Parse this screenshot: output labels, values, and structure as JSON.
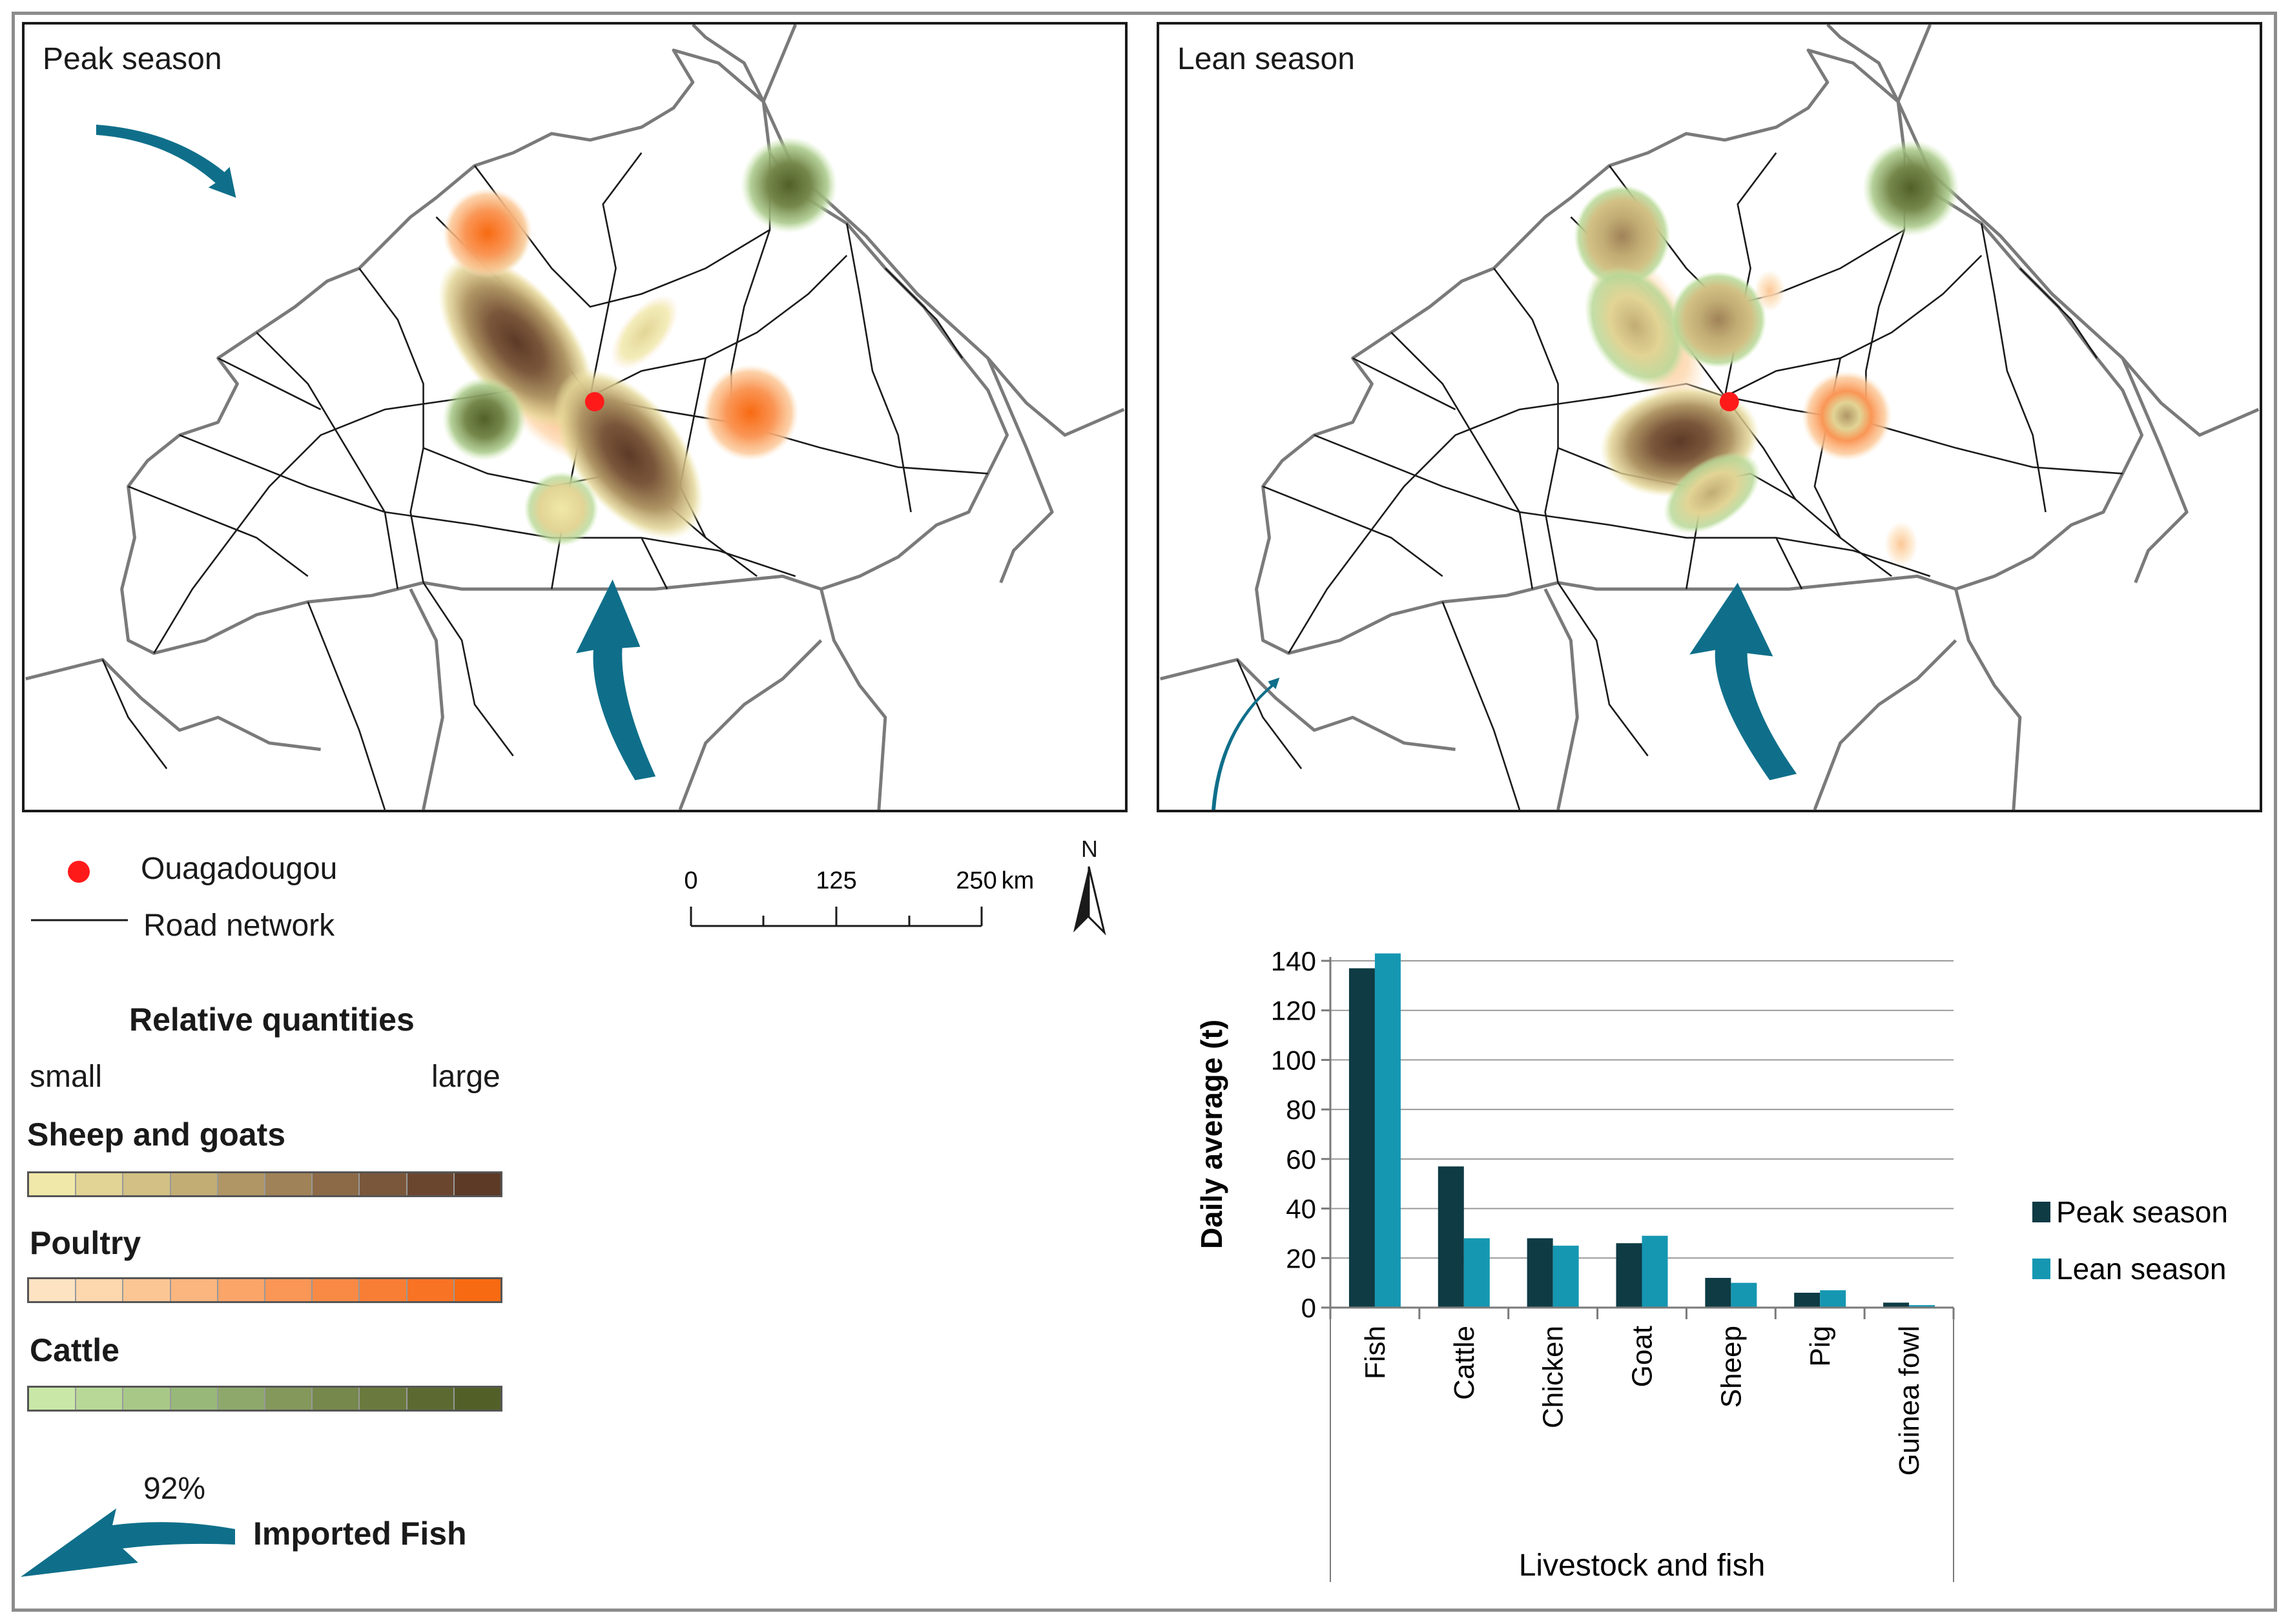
{
  "maps": {
    "peak_title": "Peak season",
    "lean_title": "Lean season"
  },
  "legend": {
    "capital_label": "Ouagadougou",
    "road_label": "Road network",
    "quantities_title": "Relative quantities",
    "small_label": "small",
    "large_label": "large",
    "sheep_goats_label": "Sheep and goats",
    "poultry_label": "Poultry",
    "cattle_label": "Cattle",
    "import_percent": "92%",
    "import_label": "Imported Fish",
    "colors": {
      "capital": "#ff1a1a",
      "arrow": "#0f6f8a",
      "sheep_goats": [
        "#f0e8a8",
        "#e2d495",
        "#d2c084",
        "#c2ad74",
        "#b09665",
        "#a08258",
        "#8c6a47",
        "#7a573b",
        "#6a462f",
        "#5c3a26"
      ],
      "poultry": [
        "#fde3c2",
        "#fdd7ad",
        "#fcc694",
        "#fbb57e",
        "#fba569",
        "#fa9656",
        "#f98a45",
        "#f97e35",
        "#f97324",
        "#f86a12"
      ],
      "cattle": [
        "#c9e8a8",
        "#b8d898",
        "#a8c888",
        "#98b87a",
        "#8ea86c",
        "#84985c",
        "#76884c",
        "#6a7a3e",
        "#5c6a32",
        "#526028"
      ]
    }
  },
  "scalebar": {
    "tick_0": "0",
    "tick_125": "125",
    "tick_250": "250",
    "unit": "km",
    "north": "N"
  },
  "chart_data": {
    "type": "bar",
    "categories": [
      "Fish",
      "Cattle",
      "Chicken",
      "Goat",
      "Sheep",
      "Pig",
      "Guinea fowl"
    ],
    "series": [
      {
        "name": "Peak season",
        "color": "#0e3b44",
        "values": [
          137,
          57,
          28,
          26,
          12,
          6,
          2
        ]
      },
      {
        "name": "Lean season",
        "color": "#1597b2",
        "values": [
          143,
          28,
          25,
          29,
          10,
          7,
          1
        ]
      }
    ],
    "title": "",
    "xlabel": "Livestock and fish",
    "ylabel": "Daily average (t)",
    "ylim": [
      0,
      140
    ],
    "yticks": [
      "0",
      "20",
      "40",
      "60",
      "80",
      "100",
      "120",
      "140"
    ],
    "grid": true,
    "legend_position": "right"
  }
}
